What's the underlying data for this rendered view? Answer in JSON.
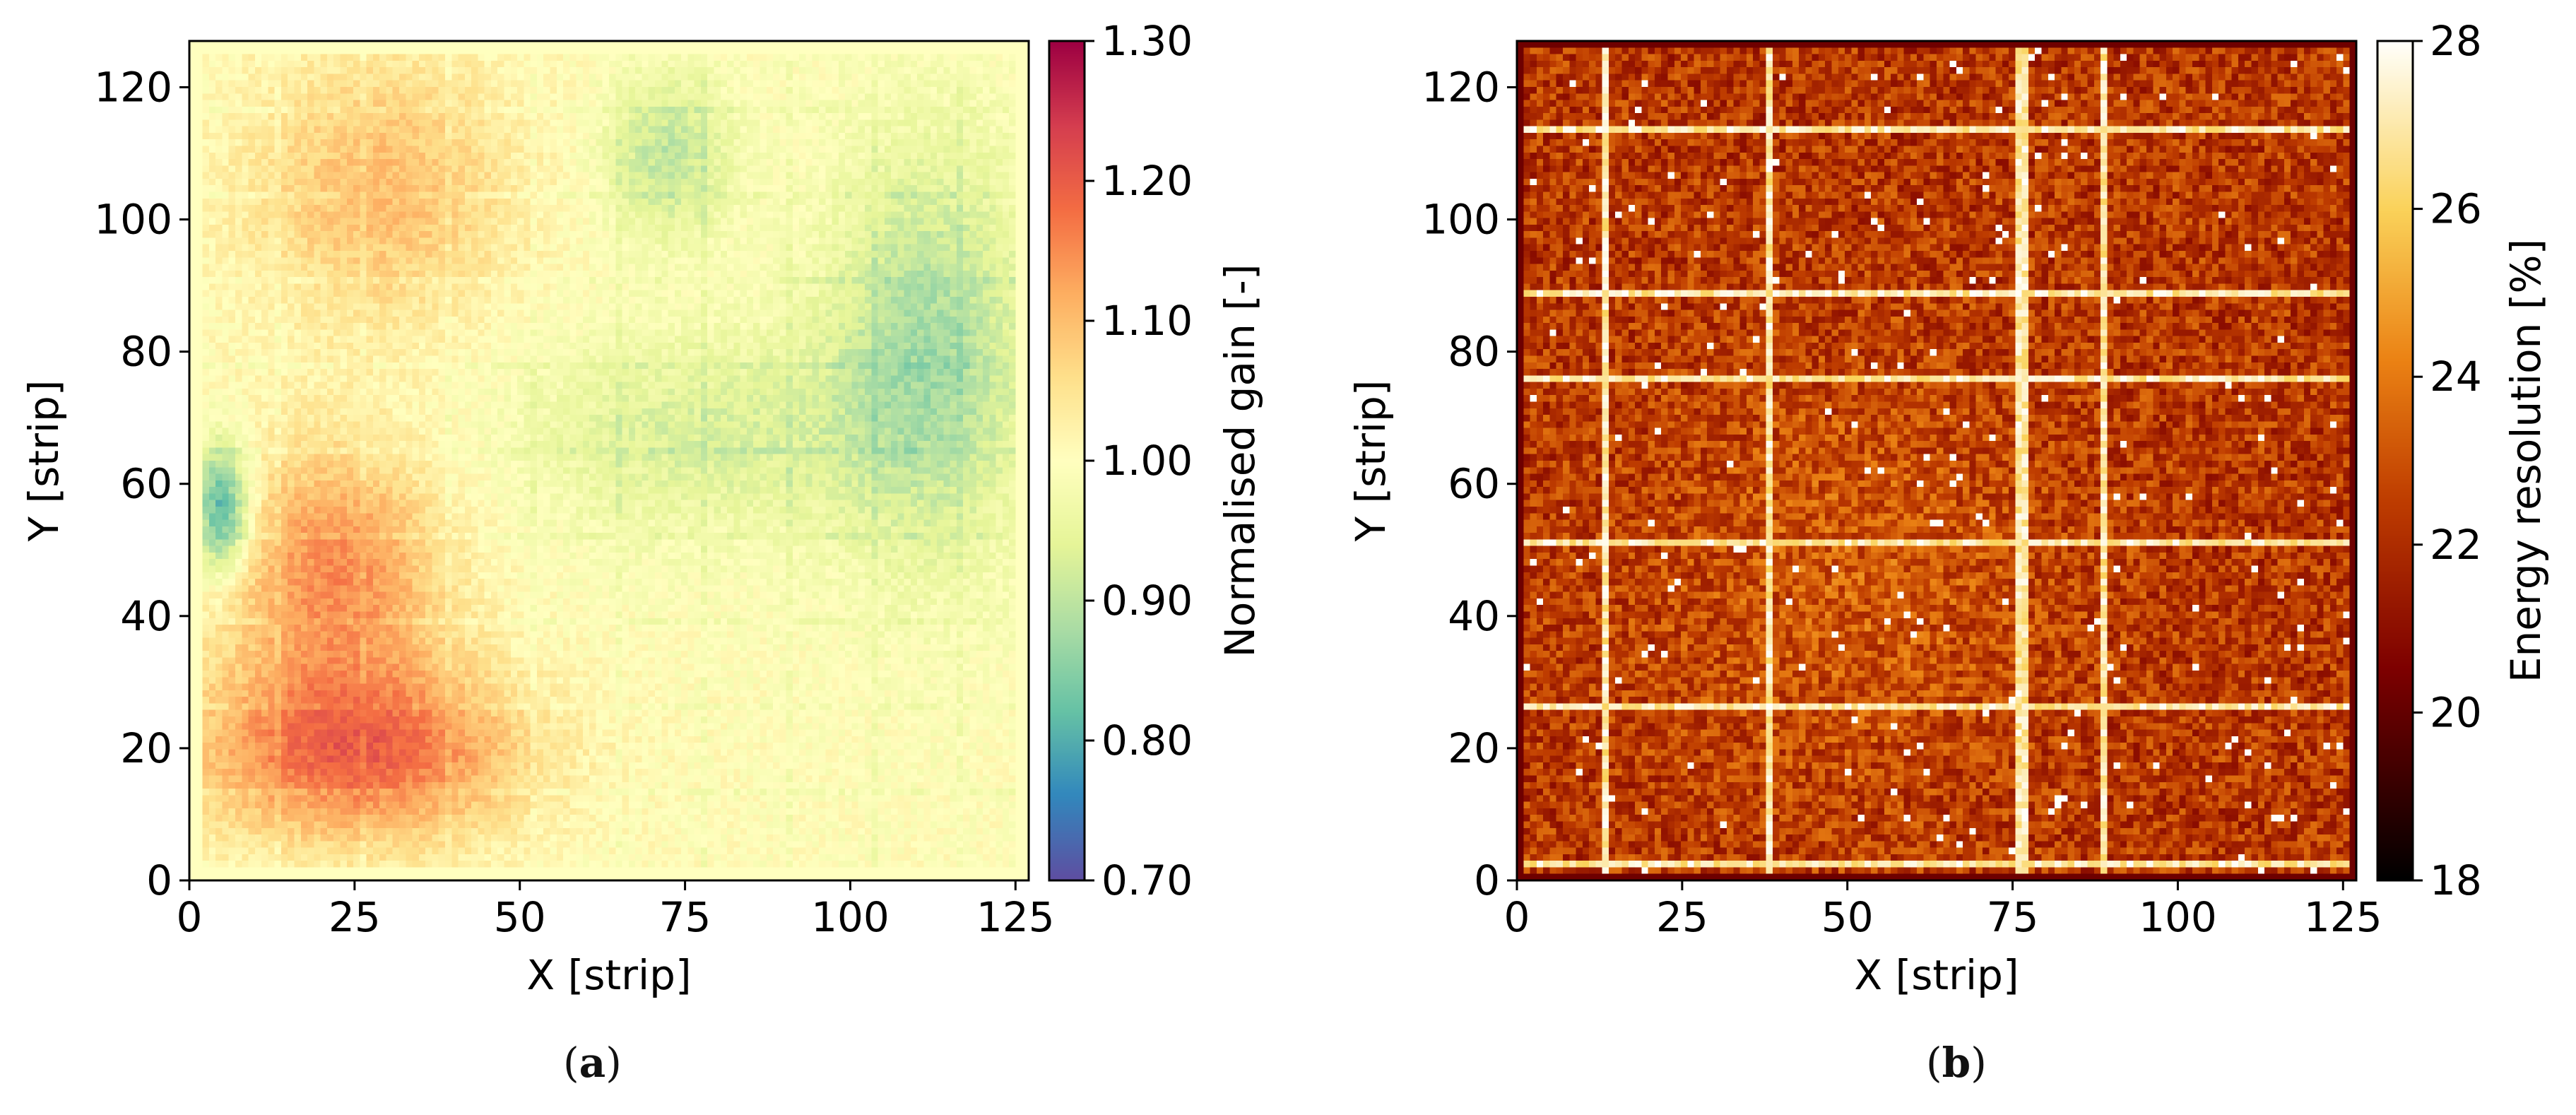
{
  "chart_data": [
    {
      "panel": "a",
      "type": "heatmap",
      "xlabel": "X [strip]",
      "ylabel": "Y [strip]",
      "xlim": [
        0,
        127
      ],
      "ylim": [
        0,
        127
      ],
      "xticks": [
        0,
        25,
        50,
        75,
        100,
        125
      ],
      "yticks": [
        0,
        20,
        40,
        60,
        80,
        100,
        120
      ],
      "colormap": "Spectral_r",
      "colorbar": {
        "label": "Normalised gain [-]",
        "range": [
          0.7,
          1.3
        ],
        "ticks": [
          "0.70",
          "0.80",
          "0.90",
          "1.00",
          "1.10",
          "1.20",
          "1.30"
        ]
      },
      "description_values": {
        "grid_size": [
          128,
          128
        ],
        "regions": [
          {
            "x": [
              5,
              45
            ],
            "y": [
              8,
              30
            ],
            "value": 1.19
          },
          {
            "x": [
              8,
              35
            ],
            "y": [
              32,
              62
            ],
            "value": 1.15
          },
          {
            "x": [
              12,
              45
            ],
            "y": [
              88,
              122
            ],
            "value": 1.1
          },
          {
            "x": [
              65,
              80
            ],
            "y": [
              100,
              120
            ],
            "value": 0.9
          },
          {
            "x": [
              100,
              125
            ],
            "y": [
              55,
              105
            ],
            "value": 0.88
          },
          {
            "x": [
              55,
              100
            ],
            "y": [
              55,
              80
            ],
            "value": 0.93
          },
          {
            "x": [
              1,
              8
            ],
            "y": [
              48,
              64
            ],
            "value": 0.78
          }
        ],
        "background_value": 1.0
      }
    },
    {
      "panel": "b",
      "type": "heatmap",
      "xlabel": "X [strip]",
      "ylabel": "Y [strip]",
      "xlim": [
        0,
        127
      ],
      "ylim": [
        0,
        127
      ],
      "xticks": [
        0,
        25,
        50,
        75,
        100,
        125
      ],
      "yticks": [
        0,
        20,
        40,
        60,
        80,
        100,
        120
      ],
      "colormap": "afmhot",
      "colorbar": {
        "label": "Energy resolution [%]",
        "range": [
          18,
          28
        ],
        "ticks": [
          "18",
          "20",
          "22",
          "24",
          "26",
          "28"
        ]
      },
      "description_values": {
        "grid_size": [
          128,
          128
        ],
        "typical_value": 22.3,
        "hot_columns": [
          13,
          38,
          76,
          77,
          89
        ],
        "hot_rows": [
          2,
          26,
          51,
          76,
          89,
          114
        ],
        "hot_value": 28
      }
    }
  ],
  "panel_labels": {
    "a": "a",
    "b": "b"
  }
}
